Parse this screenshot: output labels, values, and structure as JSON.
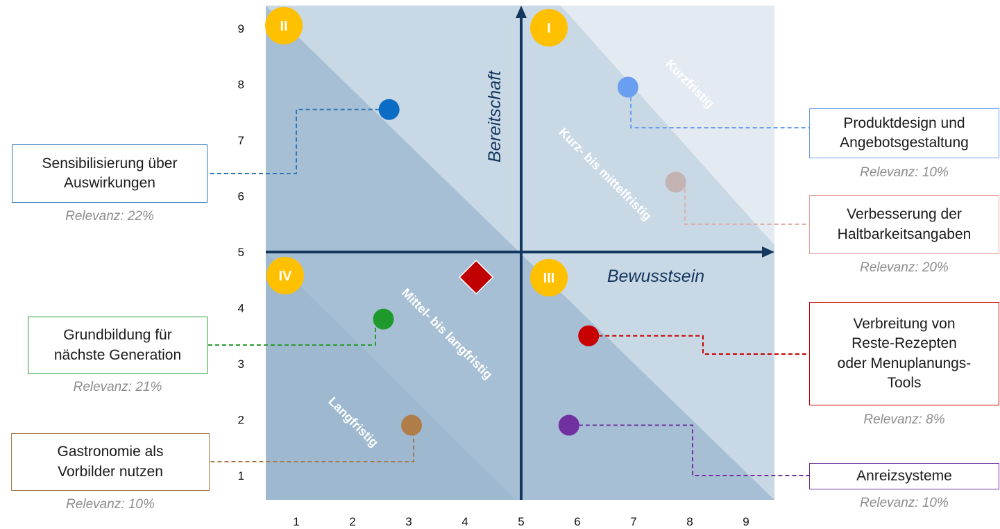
{
  "chart_data": {
    "type": "scatter",
    "xlabel": "Bewusstsein",
    "ylabel": "Bereitschaft",
    "x_ticks": [
      "1",
      "2",
      "3",
      "4",
      "5",
      "6",
      "7",
      "8",
      "9"
    ],
    "y_ticks": [
      "1",
      "2",
      "3",
      "4",
      "5",
      "6",
      "7",
      "8",
      "9"
    ],
    "xlim": [
      0.5,
      9.5
    ],
    "ylim": [
      0.5,
      9.5
    ],
    "axis_cross": [
      5,
      5
    ],
    "quadrants": [
      {
        "label": "I",
        "position": "top-right"
      },
      {
        "label": "II",
        "position": "top-left"
      },
      {
        "label": "III",
        "position": "bottom-right"
      },
      {
        "label": "IV",
        "position": "bottom-left"
      }
    ],
    "zones": [
      {
        "label": "Kurzfristig",
        "color": "#e2e9f0"
      },
      {
        "label": "Kurz- bis mittelfristig",
        "color": "#c6d6e3"
      },
      {
        "label": "Mittel- bis langfristig",
        "color": "#b0c6d9"
      },
      {
        "label": "Langfristig",
        "color": "#9fbad0"
      }
    ],
    "center_marker": {
      "x": 4.2,
      "y": 4.55,
      "color": "#c00000"
    },
    "points": [
      {
        "name": "Produktdesign und\nAngebotsgestaltung",
        "relevance": "Relevanz: 10%",
        "x": 6.9,
        "y": 7.95,
        "color": "#6a9ef0"
      },
      {
        "name": "Sensibilisierung über\nAuswirkungen",
        "relevance": "Relevanz: 22%",
        "x": 2.65,
        "y": 7.55,
        "color": "#0a6cc4"
      },
      {
        "name": "Verbesserung der\nHaltbarkeitsangaben",
        "relevance": "Relevanz: 20%",
        "x": 7.75,
        "y": 6.25,
        "color": "#c4b3b3"
      },
      {
        "name": "Grundbildung für\nnächste Generation",
        "relevance": "Relevanz: 21%",
        "x": 2.55,
        "y": 3.8,
        "color": "#1e9a2c"
      },
      {
        "name": "Verbreitung von\nReste-Rezepten\noder Menuplanungs-\nTools",
        "relevance": "Relevanz: 8%",
        "x": 6.2,
        "y": 3.5,
        "color": "#c80000"
      },
      {
        "name": "Gastronomie als\nVorbilder nutzen",
        "relevance": "Relevanz: 10%",
        "x": 3.05,
        "y": 1.9,
        "color": "#b07c48"
      },
      {
        "name": "Anreizsysteme",
        "relevance": "Relevanz: 10%",
        "x": 5.85,
        "y": 1.9,
        "color": "#7030a0"
      }
    ],
    "box_borders": [
      "#6a9ef0",
      "#2e75b6",
      "#e8a09a",
      "#2a9a30",
      "#c80000",
      "#a57a4d",
      "#7030a0"
    ]
  }
}
